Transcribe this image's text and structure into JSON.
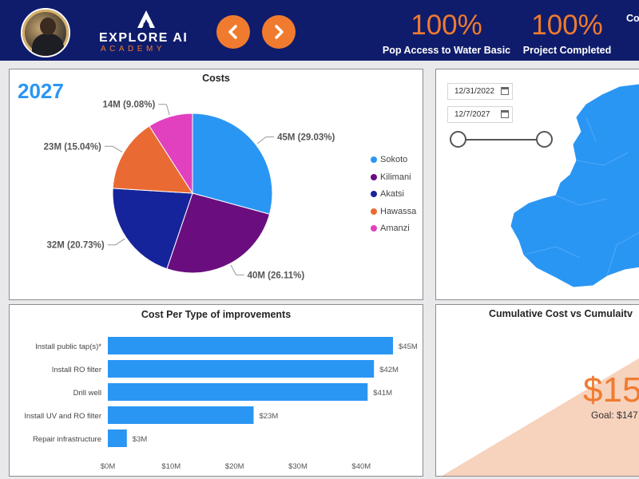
{
  "header": {
    "logo_title": "EXPLORE AI",
    "logo_subtitle": "ACADEMY",
    "kpis": [
      {
        "value": "100%",
        "label": "Pop Access to Water Basic"
      },
      {
        "value": "100%",
        "label": "Project Completed"
      },
      {
        "value": "",
        "label": "Co"
      }
    ],
    "colors": {
      "navy": "#0f1c6b",
      "accent": "#f07b2f"
    }
  },
  "costs_panel": {
    "year": "2027",
    "title": "Costs",
    "legend": [
      {
        "label": "Sokoto",
        "color": "#2a96f4"
      },
      {
        "label": "Kilimani",
        "color": "#6a0e7f"
      },
      {
        "label": "Akatsi",
        "color": "#16249b"
      },
      {
        "label": "Hawassa",
        "color": "#e96b33"
      },
      {
        "label": "Amanzi",
        "color": "#e140bf"
      }
    ]
  },
  "date_panel": {
    "start_date": "12/31/2022",
    "end_date": "12/7/2027"
  },
  "improvements_panel": {
    "title": "Cost Per Type of improvements"
  },
  "cumulative_panel": {
    "title": "Cumulative Cost vs Cumulaitv",
    "big_value": "$15",
    "goal_label": "Goal: $147"
  },
  "chart_data": [
    {
      "type": "pie",
      "title": "Costs",
      "categories": [
        "Sokoto",
        "Kilimani",
        "Akatsi",
        "Hawassa",
        "Amanzi"
      ],
      "values": [
        45,
        40,
        32,
        23,
        14
      ],
      "labels": [
        "45M (29.03%)",
        "40M (26.11%)",
        "32M (20.73%)",
        "23M (15.04%)",
        "14M (9.08%)"
      ],
      "colors": [
        "#2a96f4",
        "#6a0e7f",
        "#16249b",
        "#e96b33",
        "#e140bf"
      ],
      "legend": "right"
    },
    {
      "type": "bar",
      "orientation": "horizontal",
      "title": "Cost Per Type of improvements",
      "categories": [
        "Install public tap(s)*",
        "Install RO filter",
        "Drill well",
        "Install UV and RO filter",
        "Repair infrastructure"
      ],
      "values": [
        45,
        42,
        41,
        23,
        3
      ],
      "labels": [
        "$45M",
        "$42M",
        "$41M",
        "$23M",
        "$3M"
      ],
      "xlim": [
        0,
        45
      ],
      "ticks": [
        0,
        10,
        20,
        30,
        40
      ],
      "tick_labels": [
        "$0M",
        "$10M",
        "$20M",
        "$30M",
        "$40M"
      ],
      "color": "#2a96f4"
    }
  ]
}
